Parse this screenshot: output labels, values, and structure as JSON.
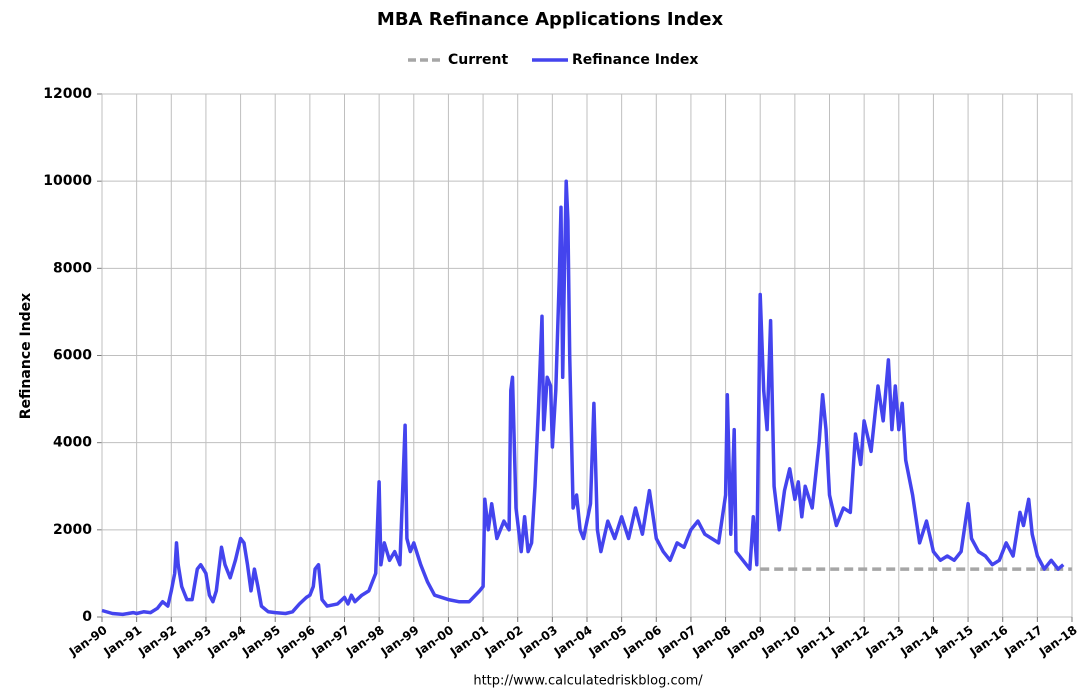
{
  "chart_data": {
    "type": "line",
    "title": "MBA Refinance Applications Index",
    "y_label": "Refinance Index",
    "source": "http://www.calculatedriskblog.com/",
    "legend": "top",
    "grid": true,
    "xlim": [
      1990,
      2018
    ],
    "ylim": [
      0,
      12000
    ],
    "yticks": [
      0,
      2000,
      4000,
      6000,
      8000,
      10000,
      12000
    ],
    "xticks": [
      {
        "value": 1990,
        "label": "Jan-90"
      },
      {
        "value": 1991,
        "label": "Jan-91"
      },
      {
        "value": 1992,
        "label": "Jan-92"
      },
      {
        "value": 1993,
        "label": "Jan-93"
      },
      {
        "value": 1994,
        "label": "Jan-94"
      },
      {
        "value": 1995,
        "label": "Jan-95"
      },
      {
        "value": 1996,
        "label": "Jan-96"
      },
      {
        "value": 1997,
        "label": "Jan-97"
      },
      {
        "value": 1998,
        "label": "Jan-98"
      },
      {
        "value": 1999,
        "label": "Jan-99"
      },
      {
        "value": 2000,
        "label": "Jan-00"
      },
      {
        "value": 2001,
        "label": "Jan-01"
      },
      {
        "value": 2002,
        "label": "Jan-02"
      },
      {
        "value": 2003,
        "label": "Jan-03"
      },
      {
        "value": 2004,
        "label": "Jan-04"
      },
      {
        "value": 2005,
        "label": "Jan-05"
      },
      {
        "value": 2006,
        "label": "Jan-06"
      },
      {
        "value": 2007,
        "label": "Jan-07"
      },
      {
        "value": 2008,
        "label": "Jan-08"
      },
      {
        "value": 2009,
        "label": "Jan-09"
      },
      {
        "value": 2010,
        "label": "Jan-10"
      },
      {
        "value": 2011,
        "label": "Jan-11"
      },
      {
        "value": 2012,
        "label": "Jan-12"
      },
      {
        "value": 2013,
        "label": "Jan-13"
      },
      {
        "value": 2014,
        "label": "Jan-14"
      },
      {
        "value": 2015,
        "label": "Jan-15"
      },
      {
        "value": 2016,
        "label": "Jan-16"
      },
      {
        "value": 2017,
        "label": "Jan-17"
      },
      {
        "value": 2018,
        "label": "Jan-18"
      }
    ],
    "series": [
      {
        "name": "Current",
        "color": "#a6a6a6",
        "dashed": true,
        "x": [
          2009,
          2018
        ],
        "values": [
          1100,
          1100
        ]
      },
      {
        "name": "Refinance Index",
        "color": "#4444ee",
        "dashed": false,
        "x": [
          1990.0,
          1990.3,
          1990.6,
          1990.9,
          1991.0,
          1991.2,
          1991.4,
          1991.6,
          1991.75,
          1991.9,
          1992.0,
          1992.05,
          1992.1,
          1992.15,
          1992.2,
          1992.3,
          1992.45,
          1992.6,
          1992.75,
          1992.85,
          1993.0,
          1993.1,
          1993.2,
          1993.3,
          1993.45,
          1993.55,
          1993.7,
          1993.85,
          1994.0,
          1994.1,
          1994.2,
          1994.3,
          1994.4,
          1994.5,
          1994.6,
          1994.8,
          1995.0,
          1995.3,
          1995.5,
          1995.7,
          1995.9,
          1996.0,
          1996.1,
          1996.15,
          1996.25,
          1996.35,
          1996.5,
          1996.8,
          1997.0,
          1997.1,
          1997.2,
          1997.3,
          1997.5,
          1997.7,
          1997.9,
          1998.0,
          1998.05,
          1998.15,
          1998.3,
          1998.45,
          1998.6,
          1998.75,
          1998.8,
          1998.9,
          1999.0,
          1999.2,
          1999.4,
          1999.6,
          2000.0,
          2000.3,
          2000.6,
          2000.9,
          2001.0,
          2001.05,
          2001.15,
          2001.25,
          2001.4,
          2001.6,
          2001.75,
          2001.8,
          2001.85,
          2001.95,
          2002.1,
          2002.2,
          2002.3,
          2002.4,
          2002.5,
          2002.6,
          2002.7,
          2002.75,
          2002.85,
          2002.95,
          2003.0,
          2003.1,
          2003.2,
          2003.25,
          2003.3,
          2003.35,
          2003.4,
          2003.45,
          2003.5,
          2003.6,
          2003.7,
          2003.8,
          2003.9,
          2004.1,
          2004.2,
          2004.3,
          2004.4,
          2004.6,
          2004.8,
          2005.0,
          2005.2,
          2005.4,
          2005.6,
          2005.8,
          2006.0,
          2006.2,
          2006.4,
          2006.6,
          2006.8,
          2007.0,
          2007.2,
          2007.4,
          2007.6,
          2007.8,
          2008.0,
          2008.05,
          2008.15,
          2008.25,
          2008.3,
          2008.5,
          2008.7,
          2008.8,
          2008.9,
          2009.0,
          2009.1,
          2009.2,
          2009.3,
          2009.4,
          2009.55,
          2009.7,
          2009.85,
          2010.0,
          2010.1,
          2010.2,
          2010.3,
          2010.5,
          2010.7,
          2010.8,
          2010.9,
          2011.0,
          2011.2,
          2011.4,
          2011.6,
          2011.75,
          2011.9,
          2012.0,
          2012.2,
          2012.4,
          2012.55,
          2012.7,
          2012.8,
          2012.9,
          2013.0,
          2013.1,
          2013.2,
          2013.4,
          2013.6,
          2013.8,
          2014.0,
          2014.2,
          2014.4,
          2014.6,
          2014.8,
          2015.0,
          2015.1,
          2015.3,
          2015.5,
          2015.7,
          2015.9,
          2016.1,
          2016.3,
          2016.5,
          2016.6,
          2016.75,
          2016.85,
          2017.0,
          2017.2,
          2017.4,
          2017.6,
          2017.75
        ],
        "values": [
          150,
          80,
          60,
          100,
          80,
          120,
          100,
          200,
          350,
          250,
          600,
          800,
          1000,
          1700,
          1200,
          700,
          400,
          400,
          1100,
          1200,
          1000,
          500,
          350,
          600,
          1600,
          1200,
          900,
          1300,
          1800,
          1700,
          1200,
          600,
          1100,
          700,
          250,
          120,
          100,
          80,
          120,
          300,
          450,
          500,
          700,
          1100,
          1200,
          400,
          250,
          300,
          450,
          300,
          500,
          350,
          500,
          600,
          1000,
          3100,
          1200,
          1700,
          1300,
          1500,
          1200,
          4400,
          1800,
          1500,
          1700,
          1200,
          800,
          500,
          400,
          350,
          350,
          600,
          700,
          2700,
          2000,
          2600,
          1800,
          2200,
          2000,
          5200,
          5500,
          2500,
          1500,
          2300,
          1500,
          1700,
          3000,
          4800,
          6900,
          4300,
          5500,
          5300,
          3900,
          5200,
          7800,
          9400,
          5500,
          8000,
          10000,
          9100,
          6000,
          2500,
          2800,
          2000,
          1800,
          2600,
          4900,
          2000,
          1500,
          2200,
          1800,
          2300,
          1800,
          2500,
          1900,
          2900,
          1800,
          1500,
          1300,
          1700,
          1600,
          2000,
          2200,
          1900,
          1800,
          1700,
          2800,
          5100,
          1900,
          4300,
          1500,
          1300,
          1100,
          2300,
          1200,
          7400,
          5200,
          4300,
          6800,
          3000,
          2000,
          2900,
          3400,
          2700,
          3100,
          2300,
          3000,
          2500,
          4000,
          5100,
          4300,
          2800,
          2100,
          2500,
          2400,
          4200,
          3500,
          4500,
          3800,
          5300,
          4500,
          5900,
          4300,
          5300,
          4300,
          4900,
          3600,
          2800,
          1700,
          2200,
          1500,
          1300,
          1400,
          1300,
          1500,
          2600,
          1800,
          1500,
          1400,
          1200,
          1300,
          1700,
          1400,
          2400,
          2100,
          2700,
          1900,
          1400,
          1100,
          1300,
          1100,
          1200
        ]
      }
    ]
  }
}
